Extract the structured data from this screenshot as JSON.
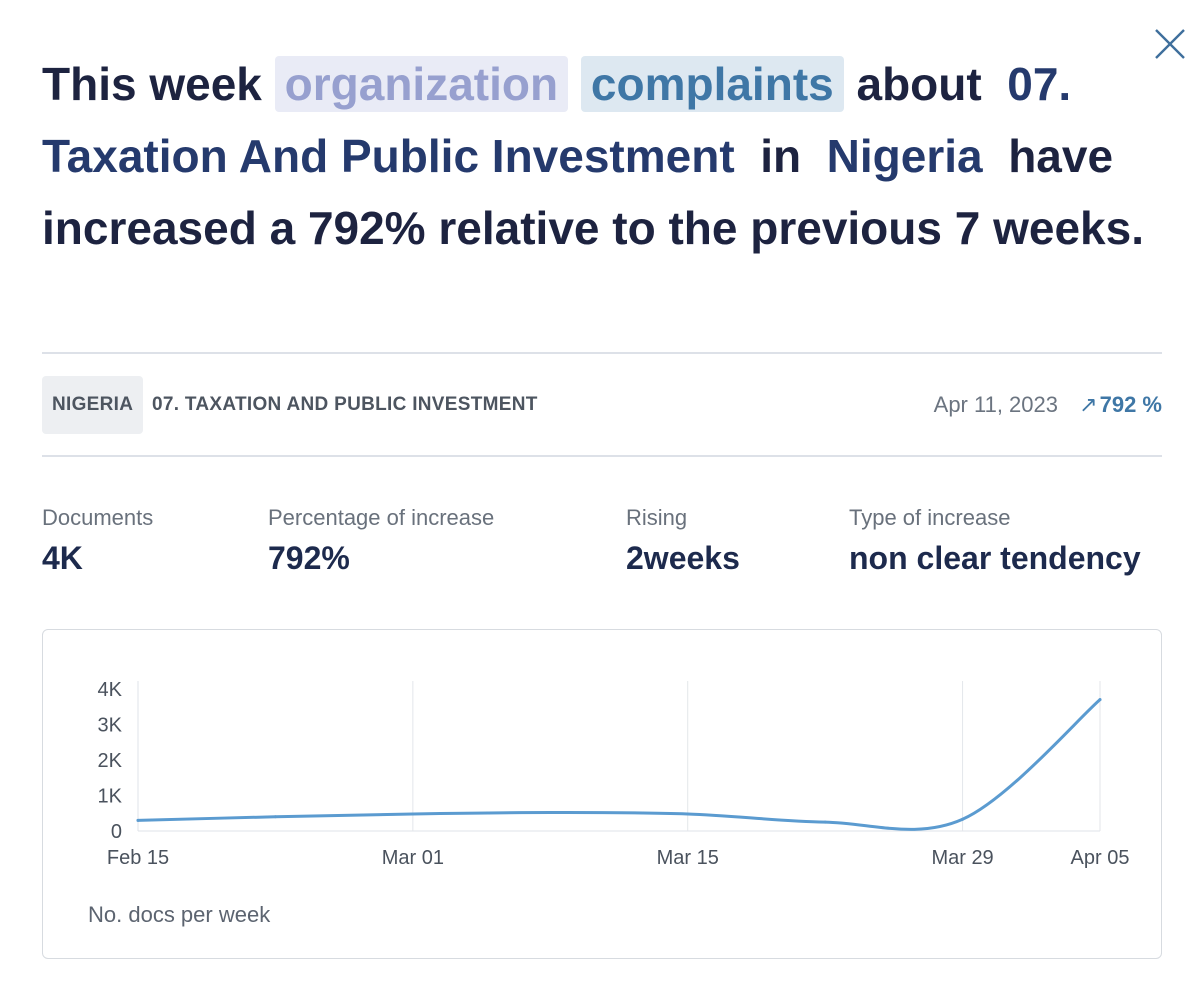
{
  "headline": {
    "prefix": "This week",
    "chip_organization": "organization",
    "chip_complaints": "complaints",
    "about": "about",
    "topic": "07. Taxation And Public Investment",
    "in": "in",
    "country": "Nigeria",
    "suffix": "have increased a 792% relative to the previous 7 weeks."
  },
  "meta": {
    "country_badge": "NIGERIA",
    "topic_label": "07. TAXATION AND PUBLIC INVESTMENT",
    "date": "Apr 11, 2023",
    "increase_arrow": "↗",
    "increase": "792 %"
  },
  "stats": [
    {
      "label": "Documents",
      "value": "4K"
    },
    {
      "label": "Percentage of increase",
      "value": "792%"
    },
    {
      "label": "Rising",
      "value": "2weeks"
    },
    {
      "label": "Type of increase",
      "value": "non clear tendency"
    }
  ],
  "icons": {
    "close": "close-icon"
  },
  "colors": {
    "line": "#5b9bd0",
    "accent": "#3f77a6",
    "text": "#1d2340"
  },
  "chart_data": {
    "type": "line",
    "title": "",
    "caption": "No. docs per week",
    "xlabel": "",
    "ylabel": "",
    "x_ticks": [
      "Feb 15",
      "Mar 01",
      "Mar 15",
      "Mar 29",
      "Apr 05"
    ],
    "y_ticks": [
      "0",
      "1K",
      "2K",
      "3K",
      "4K"
    ],
    "ylim": [
      0,
      4000
    ],
    "grid": "vertical",
    "series": [
      {
        "name": "No. docs per week",
        "x": [
          "Feb 15",
          "Feb 22",
          "Mar 01",
          "Mar 08",
          "Mar 15",
          "Mar 22",
          "Mar 29",
          "Apr 05"
        ],
        "values": [
          300,
          400,
          480,
          520,
          480,
          250,
          330,
          3700
        ]
      }
    ]
  }
}
